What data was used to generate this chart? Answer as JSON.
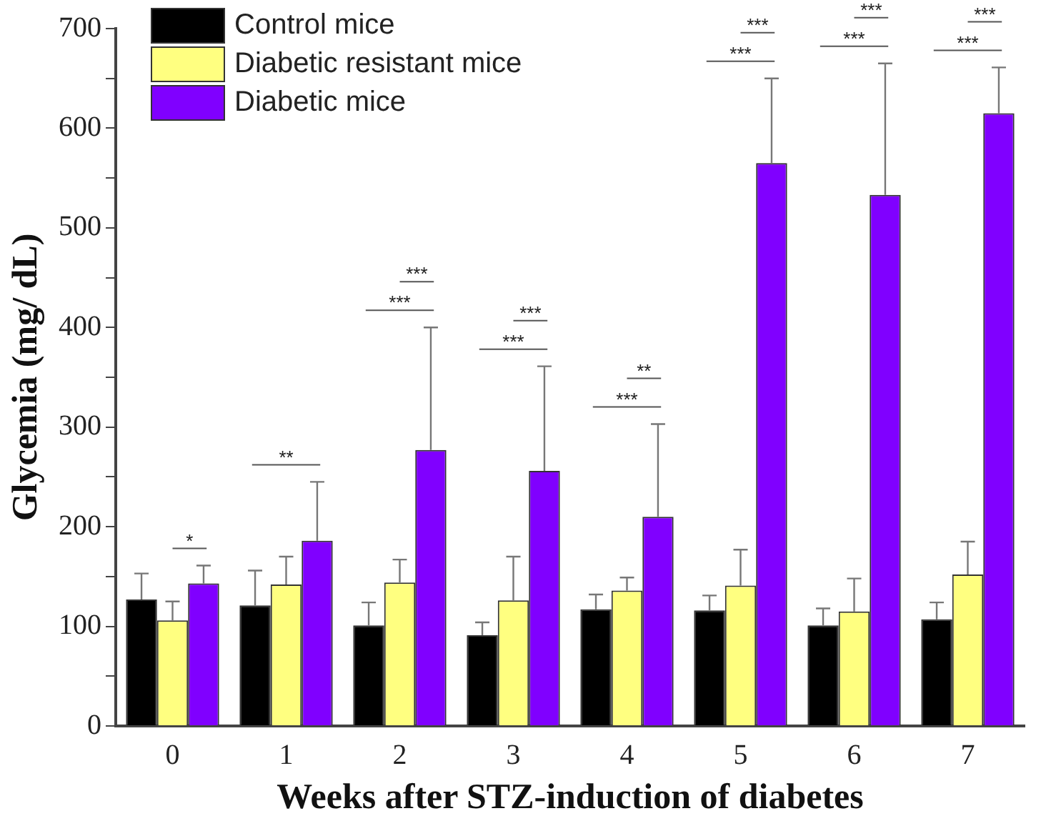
{
  "chart_data": {
    "type": "bar",
    "xlabel": "Weeks after STZ-induction of diabetes",
    "ylabel": "Glycemia (mg/ dL)",
    "categories": [
      "0",
      "1",
      "2",
      "3",
      "4",
      "5",
      "6",
      "7"
    ],
    "series": [
      {
        "name": "Control mice",
        "color": "#000000",
        "values": [
          127,
          121,
          101,
          91,
          117,
          116,
          101,
          107
        ],
        "errors": [
          [
            127,
            153
          ],
          [
            121,
            156
          ],
          [
            101,
            124
          ],
          [
            91,
            104
          ],
          [
            117,
            132
          ],
          [
            116,
            131
          ],
          [
            101,
            118
          ],
          [
            107,
            124
          ]
        ]
      },
      {
        "name": "Diabetic resistant mice",
        "color": "#ffff80",
        "values": [
          106,
          142,
          144,
          126,
          136,
          141,
          115,
          152
        ],
        "errors": [
          [
            106,
            125
          ],
          [
            142,
            170
          ],
          [
            144,
            167
          ],
          [
            126,
            170
          ],
          [
            136,
            149
          ],
          [
            141,
            177
          ],
          [
            115,
            148
          ],
          [
            152,
            185
          ]
        ]
      },
      {
        "name": "Diabetic mice",
        "color": "#8000ff",
        "values": [
          143,
          186,
          277,
          256,
          210,
          565,
          533,
          615
        ],
        "errors": [
          [
            143,
            161
          ],
          [
            186,
            245
          ],
          [
            277,
            400
          ],
          [
            256,
            361
          ],
          [
            210,
            303
          ],
          [
            565,
            650
          ],
          [
            533,
            665
          ],
          [
            615,
            661
          ]
        ]
      }
    ],
    "ylim": [
      0,
      700
    ],
    "yticks": [
      0,
      {
        "value": 50,
        "label": null
      },
      100,
      {
        "value": 150,
        "label": null
      },
      200,
      {
        "value": 250,
        "label": null
      },
      300,
      {
        "value": 350,
        "label": null
      },
      400,
      {
        "value": 450,
        "label": null
      },
      500,
      {
        "value": 550,
        "label": null
      },
      600,
      {
        "value": 650,
        "label": null
      },
      700
    ],
    "annotations": [
      "*",
      "**",
      "***",
      "***",
      "***",
      "***",
      "***",
      "**",
      "***",
      "***",
      "***",
      "***",
      "***",
      "***"
    ],
    "legend": "top left",
    "grid": false
  }
}
